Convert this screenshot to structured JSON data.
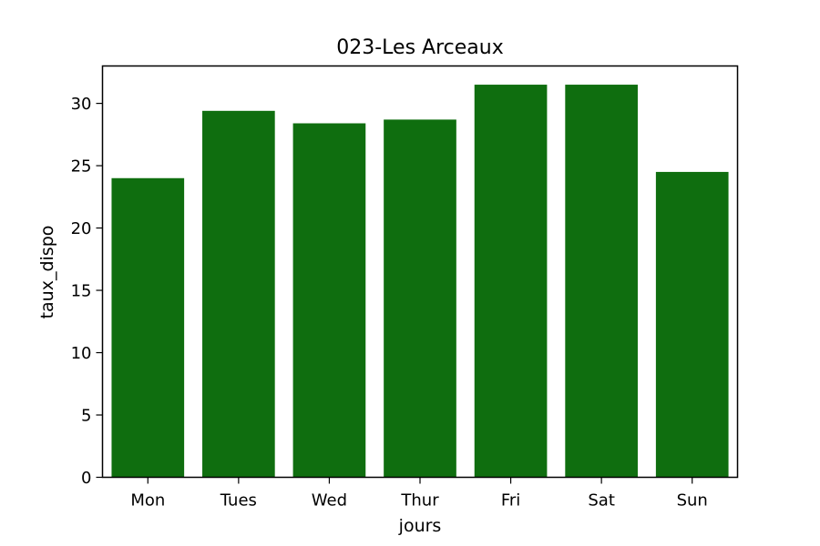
{
  "chart_data": {
    "type": "bar",
    "title": "023-Les Arceaux",
    "xlabel": "jours",
    "ylabel": "taux_dispo",
    "categories": [
      "Mon",
      "Tues",
      "Wed",
      "Thur",
      "Fri",
      "Sat",
      "Sun"
    ],
    "values": [
      24.0,
      29.4,
      28.4,
      28.7,
      31.5,
      31.5,
      24.5
    ],
    "ylim": [
      0,
      33
    ],
    "yticks": [
      0,
      5,
      10,
      15,
      20,
      25,
      30
    ],
    "grid": false,
    "bar_color": "#0f6e0f"
  }
}
